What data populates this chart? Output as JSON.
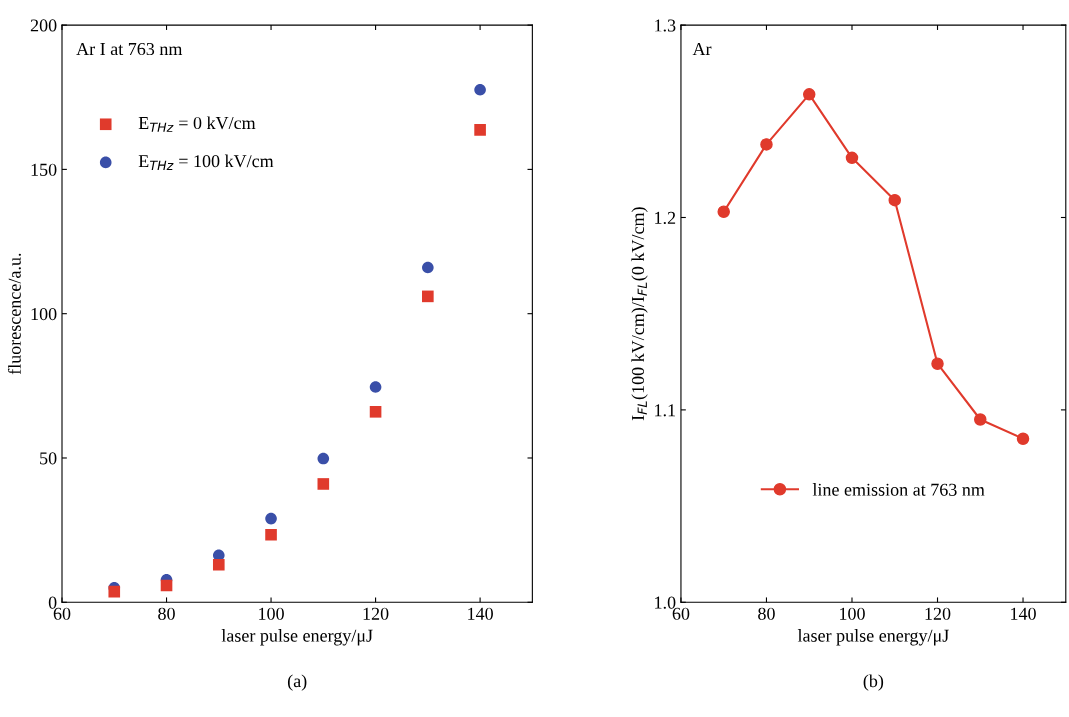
{
  "chart_data": [
    {
      "type": "scatter",
      "xlabel": "laser pulse energy/μJ",
      "ylabel": "fluorescence/a.u.",
      "annotations": [
        "Ar I at 763 nm",
        "(a)"
      ],
      "x": [
        70,
        80,
        90,
        100,
        110,
        120,
        130,
        140
      ],
      "series": [
        {
          "name": "E$_{THz}$ = 0 kV/cm",
          "color": "#e03a2c",
          "marker": "square",
          "values": [
            3.7,
            5.8,
            13,
            23.4,
            41,
            66,
            106,
            163.7
          ]
        },
        {
          "name": "E$_{THz}$ = 100 kV/cm",
          "color": "#3a4fa8",
          "marker": "circle",
          "values": [
            5,
            7.8,
            16.3,
            29,
            49.8,
            74.6,
            116,
            177.6
          ]
        }
      ],
      "xlim": [
        60,
        150
      ],
      "xticks": [
        60,
        80,
        100,
        120,
        140
      ],
      "ylim": [
        0,
        200
      ],
      "yticks": [
        0,
        50,
        100,
        150,
        200
      ],
      "legend": "top left",
      "grid": false
    },
    {
      "type": "line",
      "xlabel": "laser pulse energy/μJ",
      "ylabel": "I$_{FL}$(100 kV/cm)/I$_{FL}$(0 kV/cm)",
      "annotations": [
        "Ar",
        "(b)"
      ],
      "x": [
        70,
        80,
        90,
        100,
        110,
        120,
        130,
        140
      ],
      "series": [
        {
          "name": "line emission at 763 nm",
          "color": "#e03a2c",
          "marker": "circle",
          "line_style": "solid",
          "values": [
            1.203,
            1.238,
            1.264,
            1.231,
            1.209,
            1.124,
            1.095,
            1.085
          ]
        }
      ],
      "xlim": [
        60,
        150
      ],
      "xticks": [
        60,
        80,
        100,
        120,
        140
      ],
      "ylim": [
        1.0,
        1.3
      ],
      "yticks": [
        {
          "value": 1.0,
          "label": "1.0"
        },
        {
          "value": 1.1,
          "label": "1.1"
        },
        {
          "value": 1.2,
          "label": "1.2"
        },
        {
          "value": 1.3,
          "label": "1.3"
        }
      ],
      "legend": "bottom",
      "grid": false
    }
  ]
}
